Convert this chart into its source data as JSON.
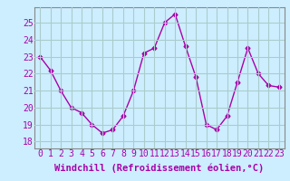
{
  "x": [
    0,
    1,
    2,
    3,
    4,
    5,
    6,
    7,
    8,
    9,
    10,
    11,
    12,
    13,
    14,
    15,
    16,
    17,
    18,
    19,
    20,
    21,
    22,
    23
  ],
  "y": [
    23.0,
    22.2,
    21.0,
    20.0,
    19.7,
    19.0,
    18.5,
    18.7,
    19.5,
    21.0,
    23.2,
    23.5,
    25.0,
    25.5,
    23.6,
    21.8,
    19.0,
    18.7,
    19.5,
    21.5,
    23.5,
    22.0,
    21.3,
    21.2
  ],
  "line_color": "#aa00aa",
  "marker": "D",
  "marker_size": 2.5,
  "bg_color": "#cceeff",
  "grid_color": "#aacccc",
  "ylabel_ticks": [
    18,
    19,
    20,
    21,
    22,
    23,
    24,
    25
  ],
  "xlabel": "Windchill (Refroidissement éolien,°C)",
  "xlim": [
    -0.5,
    23.5
  ],
  "ylim": [
    17.6,
    25.9
  ],
  "xlabel_fontsize": 7.5,
  "tick_fontsize": 7,
  "label_color": "#aa00aa"
}
